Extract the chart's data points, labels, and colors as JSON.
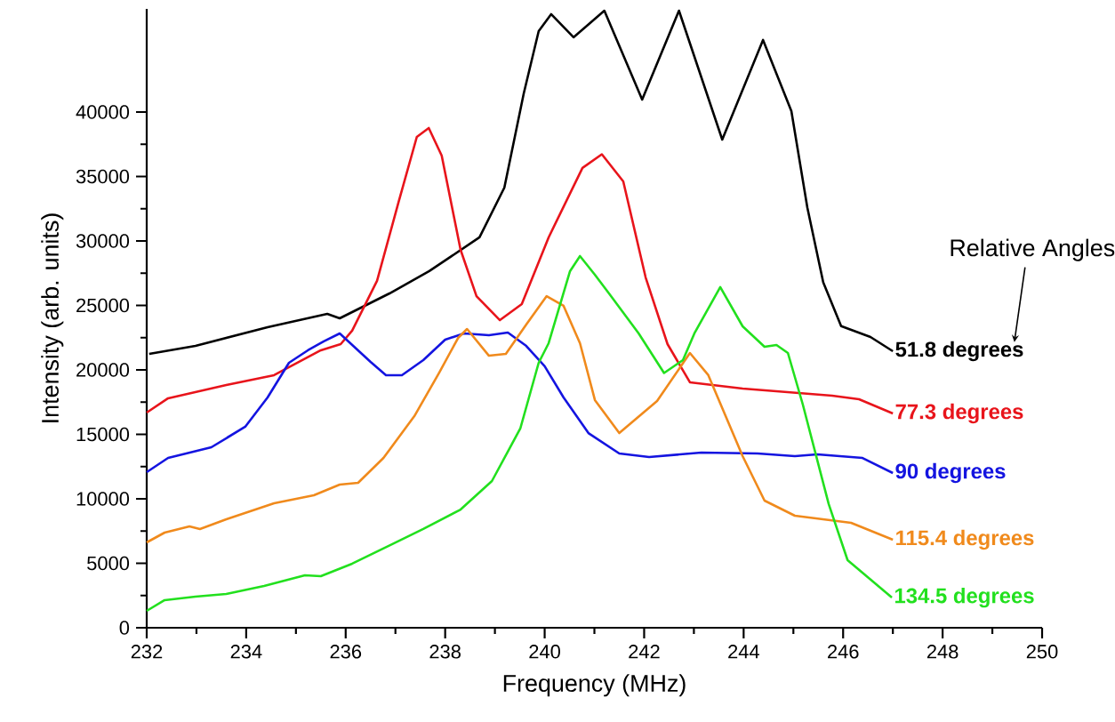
{
  "chart_data": {
    "type": "line",
    "xlabel": "Frequency (MHz)",
    "ylabel": "Intensity (arb. units)",
    "legend_title": "Relative Angles",
    "xlim": [
      232,
      250
    ],
    "ylim": [
      0,
      48000
    ],
    "xticks": [
      232,
      234,
      236,
      238,
      240,
      242,
      244,
      246,
      248,
      250
    ],
    "yticks": [
      0,
      5000,
      10000,
      15000,
      20000,
      25000,
      30000,
      35000,
      40000
    ],
    "grid": false,
    "marker": "none",
    "line_style": "solid",
    "series": [
      {
        "name": "51.8 degrees",
        "color": "#000000",
        "x": [
          232.05,
          232.98,
          234.43,
          235.63,
          235.88,
          236.88,
          237.68,
          238.69,
          239.19,
          239.58,
          239.88,
          240.13,
          240.58,
          241.2,
          241.96,
          242.7,
          243.57,
          244.39,
          244.96,
          245.28,
          245.6,
          245.96,
          246.55,
          247.0
        ],
        "values": [
          21240,
          21860,
          23310,
          24350,
          24000,
          25930,
          27660,
          30280,
          34140,
          41450,
          46280,
          47590,
          45800,
          47860,
          40970,
          47860,
          37860,
          45590,
          40070,
          32600,
          26800,
          23400,
          22550,
          21450
        ]
      },
      {
        "name": "77.3 degrees",
        "color": "#e8141b",
        "x": [
          232.0,
          232.43,
          233.6,
          234.56,
          235.5,
          235.9,
          236.13,
          236.63,
          237.06,
          237.43,
          237.67,
          237.93,
          238.31,
          238.63,
          239.1,
          239.54,
          240.08,
          240.76,
          241.15,
          241.58,
          242.03,
          242.47,
          242.92,
          243.98,
          245.78,
          246.32,
          247.0
        ],
        "values": [
          16690,
          17800,
          18830,
          19590,
          21520,
          22000,
          23040,
          26900,
          32970,
          38070,
          38760,
          36620,
          29310,
          25720,
          23860,
          25100,
          30280,
          35660,
          36720,
          34620,
          27170,
          22000,
          19040,
          18550,
          18000,
          17720,
          16620
        ]
      },
      {
        "name": "90 degrees",
        "color": "#1414e0",
        "x": [
          232.0,
          232.43,
          233.3,
          233.98,
          234.43,
          234.86,
          235.24,
          235.56,
          235.88,
          236.5,
          236.81,
          237.13,
          237.56,
          238.0,
          238.38,
          238.88,
          239.26,
          239.63,
          240.0,
          240.38,
          240.88,
          241.5,
          242.1,
          243.15,
          244.28,
          245.03,
          245.48,
          246.39,
          247.0
        ],
        "values": [
          12070,
          13170,
          14000,
          15590,
          17860,
          20550,
          21520,
          22210,
          22830,
          20620,
          19590,
          19590,
          20760,
          22350,
          22830,
          22690,
          22900,
          21860,
          20280,
          17860,
          15100,
          13520,
          13240,
          13590,
          13520,
          13310,
          13450,
          13170,
          12000
        ]
      },
      {
        "name": "115.4 degrees",
        "color": "#f08a1c",
        "x": [
          232.0,
          232.36,
          232.86,
          233.07,
          233.6,
          234.56,
          235.36,
          235.88,
          236.25,
          236.76,
          237.38,
          237.88,
          238.26,
          238.44,
          238.88,
          239.22,
          239.63,
          240.04,
          240.38,
          240.71,
          241.01,
          241.5,
          242.26,
          242.92,
          243.29,
          243.98,
          244.42,
          245.03,
          246.16,
          247.0
        ],
        "values": [
          6620,
          7380,
          7860,
          7660,
          8410,
          9660,
          10280,
          11100,
          11240,
          13170,
          16410,
          19790,
          22480,
          23170,
          21100,
          21240,
          23520,
          25720,
          24970,
          22070,
          17660,
          15100,
          17590,
          21310,
          19590,
          13310,
          9860,
          8690,
          8140,
          6830
        ]
      },
      {
        "name": "134.5 degrees",
        "color": "#22e01e",
        "x": [
          232.0,
          232.36,
          232.98,
          233.6,
          234.36,
          235.18,
          235.5,
          236.13,
          236.93,
          237.56,
          238.31,
          238.94,
          239.51,
          239.88,
          240.08,
          240.51,
          240.71,
          241.01,
          241.3,
          241.89,
          242.4,
          242.78,
          243.01,
          243.53,
          243.98,
          244.42,
          244.66,
          244.89,
          245.19,
          245.71,
          246.09,
          246.98
        ],
        "values": [
          1310,
          2140,
          2410,
          2620,
          3240,
          4070,
          4000,
          4970,
          6480,
          7660,
          9170,
          11380,
          15450,
          20550,
          22070,
          27660,
          28830,
          27380,
          25900,
          22830,
          19760,
          20760,
          22830,
          26420,
          23380,
          21790,
          21930,
          21310,
          17310,
          9590,
          5240,
          2340
        ]
      }
    ]
  }
}
